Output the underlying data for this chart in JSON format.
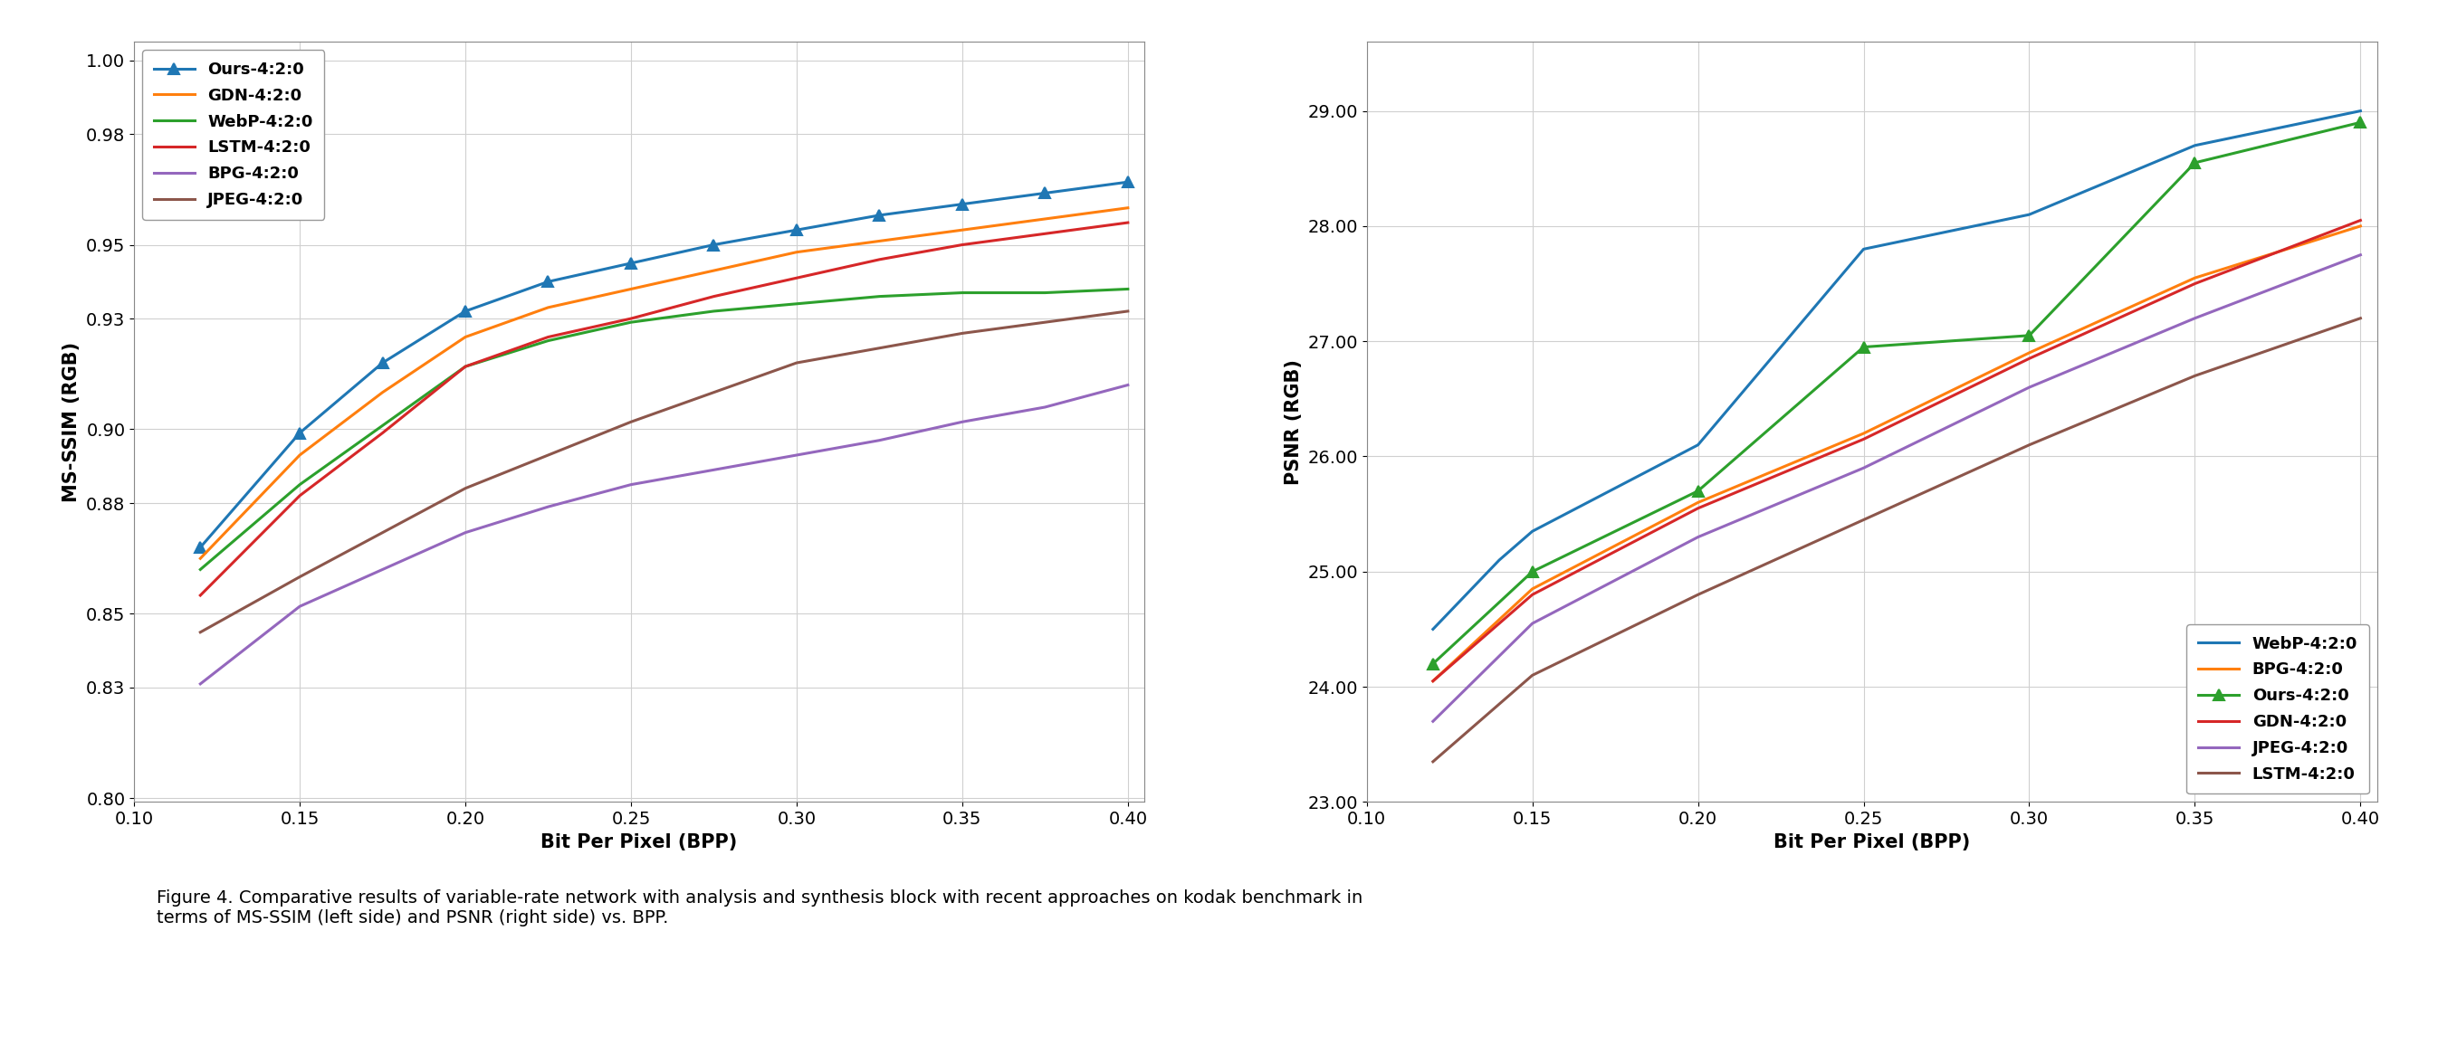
{
  "left_plot": {
    "xlabel": "Bit Per Pixel (BPP)",
    "ylabel": "MS-SSIM (RGB)",
    "xlim": [
      0.1,
      0.405
    ],
    "ylim": [
      0.799,
      1.005
    ],
    "xticks": [
      0.1,
      0.15,
      0.2,
      0.25,
      0.3,
      0.35,
      0.4
    ],
    "yticks": [
      0.8,
      0.83,
      0.85,
      0.88,
      0.9,
      0.93,
      0.95,
      0.98,
      1.0
    ],
    "series": [
      {
        "label": "Ours-4:2:0",
        "color": "#1f77b4",
        "marker": "^",
        "x": [
          0.12,
          0.15,
          0.175,
          0.2,
          0.225,
          0.25,
          0.275,
          0.3,
          0.325,
          0.35,
          0.375,
          0.4
        ],
        "y": [
          0.868,
          0.899,
          0.918,
          0.932,
          0.94,
          0.945,
          0.95,
          0.954,
          0.958,
          0.961,
          0.964,
          0.967
        ]
      },
      {
        "label": "GDN-4:2:0",
        "color": "#ff7f0e",
        "marker": null,
        "x": [
          0.12,
          0.15,
          0.175,
          0.2,
          0.225,
          0.25,
          0.275,
          0.3,
          0.325,
          0.35,
          0.375,
          0.4
        ],
        "y": [
          0.865,
          0.893,
          0.91,
          0.925,
          0.933,
          0.938,
          0.943,
          0.948,
          0.951,
          0.954,
          0.957,
          0.96
        ]
      },
      {
        "label": "WebP-4:2:0",
        "color": "#2ca02c",
        "marker": null,
        "x": [
          0.12,
          0.15,
          0.175,
          0.2,
          0.225,
          0.25,
          0.275,
          0.3,
          0.325,
          0.35,
          0.375,
          0.4
        ],
        "y": [
          0.862,
          0.885,
          0.901,
          0.917,
          0.924,
          0.929,
          0.932,
          0.934,
          0.936,
          0.937,
          0.937,
          0.938
        ]
      },
      {
        "label": "LSTM-4:2:0",
        "color": "#d62728",
        "marker": null,
        "x": [
          0.12,
          0.15,
          0.175,
          0.2,
          0.225,
          0.25,
          0.275,
          0.3,
          0.325,
          0.35,
          0.375,
          0.4
        ],
        "y": [
          0.855,
          0.882,
          0.899,
          0.917,
          0.925,
          0.93,
          0.936,
          0.941,
          0.946,
          0.95,
          0.953,
          0.956
        ]
      },
      {
        "label": "BPG-4:2:0",
        "color": "#9467bd",
        "marker": null,
        "x": [
          0.12,
          0.15,
          0.175,
          0.2,
          0.225,
          0.25,
          0.275,
          0.3,
          0.325,
          0.35,
          0.375,
          0.4
        ],
        "y": [
          0.831,
          0.852,
          0.862,
          0.872,
          0.879,
          0.885,
          0.889,
          0.893,
          0.897,
          0.902,
          0.906,
          0.912
        ]
      },
      {
        "label": "JPEG-4:2:0",
        "color": "#8c564b",
        "marker": null,
        "x": [
          0.12,
          0.15,
          0.175,
          0.2,
          0.225,
          0.25,
          0.275,
          0.3,
          0.325,
          0.35,
          0.375,
          0.4
        ],
        "y": [
          0.845,
          0.86,
          0.872,
          0.884,
          0.893,
          0.902,
          0.91,
          0.918,
          0.922,
          0.926,
          0.929,
          0.932
        ]
      }
    ],
    "legend_loc": "upper left"
  },
  "right_plot": {
    "xlabel": "Bit Per Pixel (BPP)",
    "ylabel": "PSNR (RGB)",
    "xlim": [
      0.1,
      0.405
    ],
    "ylim": [
      23.0,
      29.6
    ],
    "xticks": [
      0.1,
      0.15,
      0.2,
      0.25,
      0.3,
      0.35,
      0.4
    ],
    "yticks": [
      23.0,
      24.0,
      25.0,
      26.0,
      27.0,
      28.0,
      29.0
    ],
    "series": [
      {
        "label": "WebP-4:2:0",
        "color": "#1f77b4",
        "marker": null,
        "x": [
          0.12,
          0.14,
          0.15,
          0.2,
          0.25,
          0.3,
          0.35,
          0.4
        ],
        "y": [
          24.5,
          25.1,
          25.35,
          26.1,
          27.8,
          28.1,
          28.7,
          29.0
        ]
      },
      {
        "label": "BPG-4:2:0",
        "color": "#ff7f0e",
        "marker": null,
        "x": [
          0.12,
          0.15,
          0.2,
          0.25,
          0.3,
          0.35,
          0.4
        ],
        "y": [
          24.05,
          24.85,
          25.6,
          26.2,
          26.9,
          27.55,
          28.0
        ]
      },
      {
        "label": "Ours-4:2:0",
        "color": "#2ca02c",
        "marker": "^",
        "x": [
          0.12,
          0.15,
          0.2,
          0.25,
          0.3,
          0.35,
          0.4
        ],
        "y": [
          24.2,
          25.0,
          25.7,
          26.95,
          27.05,
          28.55,
          28.9
        ]
      },
      {
        "label": "GDN-4:2:0",
        "color": "#d62728",
        "marker": null,
        "x": [
          0.12,
          0.15,
          0.2,
          0.25,
          0.3,
          0.35,
          0.4
        ],
        "y": [
          24.05,
          24.8,
          25.55,
          26.15,
          26.85,
          27.5,
          28.05
        ]
      },
      {
        "label": "JPEG-4:2:0",
        "color": "#9467bd",
        "marker": null,
        "x": [
          0.12,
          0.15,
          0.2,
          0.25,
          0.3,
          0.35,
          0.4
        ],
        "y": [
          23.7,
          24.55,
          25.3,
          25.9,
          26.6,
          27.2,
          27.75
        ]
      },
      {
        "label": "LSTM-4:2:0",
        "color": "#8c564b",
        "marker": null,
        "x": [
          0.12,
          0.15,
          0.2,
          0.25,
          0.3,
          0.35,
          0.4
        ],
        "y": [
          23.35,
          24.1,
          24.8,
          25.45,
          26.1,
          26.7,
          27.2
        ]
      }
    ],
    "legend_loc": "lower right"
  },
  "caption": "Figure 4. Comparative results of variable-rate network with analysis and synthesis block with recent approaches on kodak benchmark in\nterms of MS-SSIM (left side) and PSNR (right side) vs. BPP.",
  "background_color": "#ffffff",
  "grid_color": "#d0d0d0",
  "linewidth": 2.2,
  "fontsize_tick": 14,
  "fontsize_label": 15,
  "fontsize_legend": 13,
  "fontsize_caption": 14
}
